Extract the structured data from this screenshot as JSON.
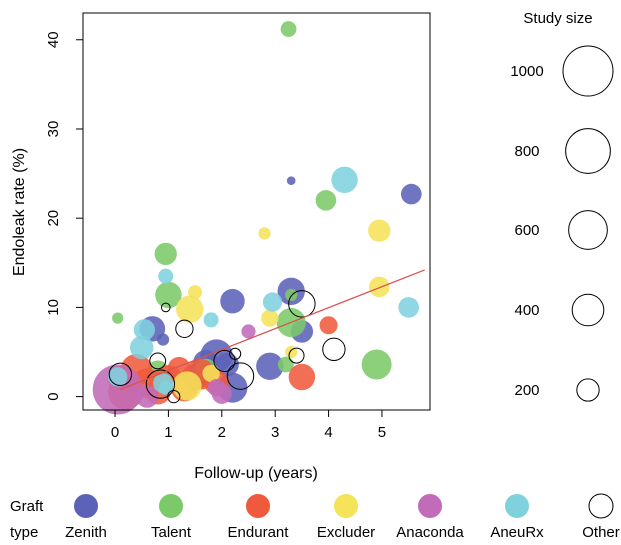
{
  "chart_data": {
    "type": "scatter",
    "xlabel": "Follow-up (years)",
    "ylabel": "Endoleak rate (%)",
    "xlim": [
      -0.6,
      5.9
    ],
    "ylim": [
      -1.5,
      43
    ],
    "x_ticks": [
      "0",
      "1",
      "2",
      "3",
      "4",
      "5"
    ],
    "y_ticks": [
      "0",
      "10",
      "20",
      "30",
      "40"
    ],
    "trend_line": {
      "x": [
        0.1,
        5.8
      ],
      "y": [
        0.8,
        14.2
      ],
      "color": "#d9534f"
    },
    "size_legend": {
      "title": "Study size",
      "entries": [
        {
          "label": "1000",
          "value": 1000
        },
        {
          "label": "800",
          "value": 800
        },
        {
          "label": "600",
          "value": 600
        },
        {
          "label": "400",
          "value": 400
        },
        {
          "label": "200",
          "value": 200
        }
      ]
    },
    "graft_legend": {
      "title_line1": "Graft",
      "title_line2": "type",
      "entries": [
        {
          "name": "Zenith",
          "color": "#5b62b8"
        },
        {
          "name": "Talent",
          "color": "#7cc96a"
        },
        {
          "name": "Endurant",
          "color": "#f05a3c"
        },
        {
          "name": "Excluder",
          "color": "#f5e35a"
        },
        {
          "name": "Anaconda",
          "color": "#c26bb8"
        },
        {
          "name": "AneuRx",
          "color": "#7fd1de"
        },
        {
          "name": "Other",
          "color": "#ffffff"
        }
      ]
    },
    "series": [
      {
        "name": "Zenith",
        "color": "#5b62b8",
        "points": [
          {
            "x": 3.3,
            "y": 24.2,
            "n": 30
          },
          {
            "x": 5.55,
            "y": 22.7,
            "n": 170
          },
          {
            "x": 2.2,
            "y": 10.7,
            "n": 240
          },
          {
            "x": 3.3,
            "y": 11.8,
            "n": 300
          },
          {
            "x": 0.7,
            "y": 7.6,
            "n": 260
          },
          {
            "x": 3.5,
            "y": 7.3,
            "n": 200
          },
          {
            "x": 1.9,
            "y": 4.6,
            "n": 420
          },
          {
            "x": 2.9,
            "y": 3.4,
            "n": 300
          },
          {
            "x": 1.7,
            "y": 3.8,
            "n": 260
          },
          {
            "x": 2.2,
            "y": 1.0,
            "n": 360
          },
          {
            "x": 2.1,
            "y": 3.6,
            "n": 220
          },
          {
            "x": 1.5,
            "y": 2.2,
            "n": 280
          },
          {
            "x": 0.3,
            "y": 1.5,
            "n": 150
          },
          {
            "x": 0.9,
            "y": 6.4,
            "n": 60
          }
        ]
      },
      {
        "name": "Talent",
        "color": "#7cc96a",
        "points": [
          {
            "x": 3.25,
            "y": 41.2,
            "n": 100
          },
          {
            "x": 3.95,
            "y": 22.0,
            "n": 170
          },
          {
            "x": 0.95,
            "y": 16.0,
            "n": 200
          },
          {
            "x": 1.0,
            "y": 11.4,
            "n": 280
          },
          {
            "x": 0.05,
            "y": 8.8,
            "n": 50
          },
          {
            "x": 3.3,
            "y": 8.3,
            "n": 340
          },
          {
            "x": 4.9,
            "y": 3.6,
            "n": 360
          },
          {
            "x": 3.2,
            "y": 3.6,
            "n": 100
          },
          {
            "x": 1.7,
            "y": 3.0,
            "n": 200
          },
          {
            "x": 0.8,
            "y": 2.8,
            "n": 200
          },
          {
            "x": 3.3,
            "y": 11.4,
            "n": 60
          }
        ]
      },
      {
        "name": "Endurant",
        "color": "#f05a3c",
        "points": [
          {
            "x": 4.0,
            "y": 8.0,
            "n": 130
          },
          {
            "x": 3.5,
            "y": 2.2,
            "n": 280
          },
          {
            "x": 0.4,
            "y": 3.0,
            "n": 400
          },
          {
            "x": 0.6,
            "y": 1.5,
            "n": 360
          },
          {
            "x": 0.2,
            "y": 0.5,
            "n": 500
          },
          {
            "x": 1.0,
            "y": 2.0,
            "n": 300
          },
          {
            "x": 1.3,
            "y": 1.0,
            "n": 300
          },
          {
            "x": 1.6,
            "y": 2.5,
            "n": 380
          },
          {
            "x": 1.9,
            "y": 1.6,
            "n": 250
          },
          {
            "x": 0.8,
            "y": 0.6,
            "n": 280
          },
          {
            "x": 1.2,
            "y": 3.2,
            "n": 200
          },
          {
            "x": 0.1,
            "y": 2.0,
            "n": 260
          }
        ]
      },
      {
        "name": "Excluder",
        "color": "#f5e35a",
        "points": [
          {
            "x": 4.95,
            "y": 18.6,
            "n": 200
          },
          {
            "x": 2.8,
            "y": 18.3,
            "n": 60
          },
          {
            "x": 1.5,
            "y": 11.7,
            "n": 80
          },
          {
            "x": 1.4,
            "y": 9.8,
            "n": 300
          },
          {
            "x": 2.9,
            "y": 8.8,
            "n": 120
          },
          {
            "x": 4.95,
            "y": 12.3,
            "n": 170
          },
          {
            "x": 1.35,
            "y": 1.2,
            "n": 340
          },
          {
            "x": 3.3,
            "y": 5.0,
            "n": 60
          },
          {
            "x": 1.8,
            "y": 2.6,
            "n": 120
          }
        ]
      },
      {
        "name": "Anaconda",
        "color": "#c26bb8",
        "points": [
          {
            "x": 0.05,
            "y": 0.8,
            "n": 1000
          },
          {
            "x": 2.5,
            "y": 7.3,
            "n": 80
          },
          {
            "x": 2.0,
            "y": 0.3,
            "n": 160
          },
          {
            "x": 1.9,
            "y": 1.0,
            "n": 120
          },
          {
            "x": 0.6,
            "y": 0.0,
            "n": 200
          }
        ]
      },
      {
        "name": "AneuRx",
        "color": "#7fd1de",
        "points": [
          {
            "x": 4.3,
            "y": 24.3,
            "n": 280
          },
          {
            "x": 0.95,
            "y": 13.5,
            "n": 90
          },
          {
            "x": 0.55,
            "y": 7.5,
            "n": 180
          },
          {
            "x": 0.5,
            "y": 5.5,
            "n": 220
          },
          {
            "x": 5.5,
            "y": 10.0,
            "n": 170
          },
          {
            "x": 2.95,
            "y": 10.6,
            "n": 150
          },
          {
            "x": 1.8,
            "y": 8.6,
            "n": 90
          },
          {
            "x": 0.05,
            "y": 2.2,
            "n": 150
          },
          {
            "x": 0.9,
            "y": 1.5,
            "n": 160
          },
          {
            "x": 0.95,
            "y": 1.0,
            "n": 80
          }
        ]
      },
      {
        "name": "Other",
        "color": "#ffffff",
        "points": [
          {
            "x": 3.5,
            "y": 10.4,
            "n": 280
          },
          {
            "x": 4.1,
            "y": 5.3,
            "n": 200
          },
          {
            "x": 1.3,
            "y": 7.6,
            "n": 120
          },
          {
            "x": 0.95,
            "y": 10.0,
            "n": 30
          },
          {
            "x": 0.1,
            "y": 2.5,
            "n": 200
          },
          {
            "x": 0.8,
            "y": 4.0,
            "n": 100
          },
          {
            "x": 0.85,
            "y": 1.4,
            "n": 320
          },
          {
            "x": 2.05,
            "y": 4.0,
            "n": 180
          },
          {
            "x": 2.25,
            "y": 4.8,
            "n": 50
          },
          {
            "x": 2.35,
            "y": 2.3,
            "n": 280
          },
          {
            "x": 3.4,
            "y": 4.6,
            "n": 90
          },
          {
            "x": 1.1,
            "y": 0.0,
            "n": 60
          }
        ]
      }
    ]
  }
}
